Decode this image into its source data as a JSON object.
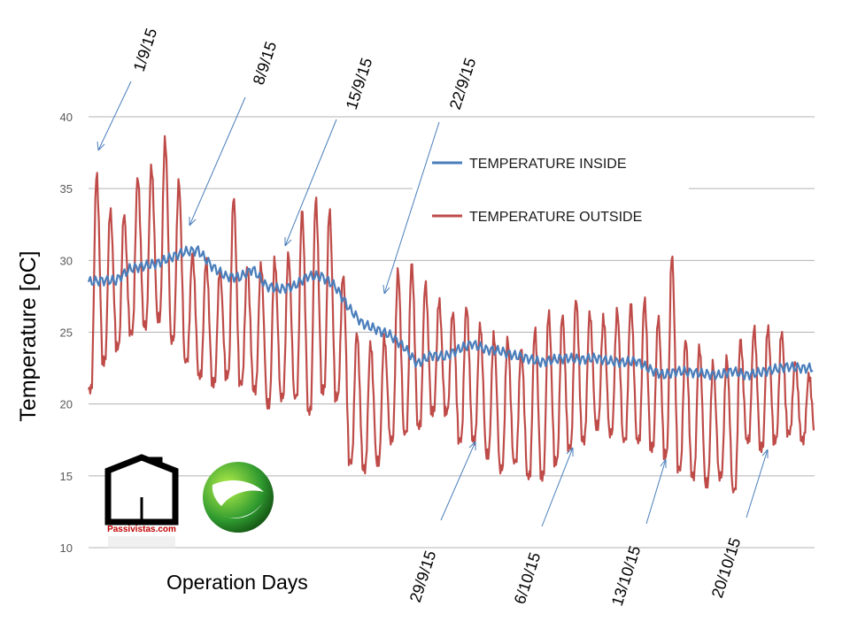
{
  "chart_data": {
    "type": "line",
    "title": "",
    "xlabel": "Operation Days",
    "ylabel": "Temperature [oC]",
    "ylim": [
      10,
      40
    ],
    "yticks": [
      10,
      15,
      20,
      25,
      30,
      35,
      40
    ],
    "xlim": [
      "2015-09-01",
      "2015-10-24"
    ],
    "grid": true,
    "legend_position": "upper-right",
    "series": [
      {
        "name": "TEMPERATURE INSIDE",
        "color": "#4a7ebb",
        "x": [
          "2015-09-01",
          "2015-09-02",
          "2015-09-03",
          "2015-09-04",
          "2015-09-05",
          "2015-09-06",
          "2015-09-07",
          "2015-09-08",
          "2015-09-09",
          "2015-09-10",
          "2015-09-11",
          "2015-09-12",
          "2015-09-13",
          "2015-09-14",
          "2015-09-15",
          "2015-09-16",
          "2015-09-17",
          "2015-09-18",
          "2015-09-19",
          "2015-09-20",
          "2015-09-21",
          "2015-09-22",
          "2015-09-23",
          "2015-09-24",
          "2015-09-25",
          "2015-09-26",
          "2015-09-27",
          "2015-09-28",
          "2015-09-29",
          "2015-09-30",
          "2015-10-01",
          "2015-10-02",
          "2015-10-03",
          "2015-10-04",
          "2015-10-05",
          "2015-10-06",
          "2015-10-07",
          "2015-10-08",
          "2015-10-09",
          "2015-10-10",
          "2015-10-11",
          "2015-10-12",
          "2015-10-13",
          "2015-10-14",
          "2015-10-15",
          "2015-10-16",
          "2015-10-17",
          "2015-10-18",
          "2015-10-19",
          "2015-10-20",
          "2015-10-21",
          "2015-10-22",
          "2015-10-23"
        ],
        "values": [
          28.5,
          28.6,
          28.6,
          29.4,
          29.6,
          29.8,
          30.2,
          30.6,
          30.7,
          29.6,
          28.9,
          28.8,
          29.4,
          28.2,
          28.0,
          28.2,
          28.9,
          28.9,
          28.2,
          26.7,
          25.6,
          25.2,
          24.8,
          24.0,
          22.8,
          23.4,
          23.3,
          23.8,
          24.2,
          23.8,
          23.7,
          23.4,
          23.2,
          22.9,
          23.1,
          23.2,
          23.1,
          23.2,
          23.0,
          22.9,
          23.0,
          22.4,
          22.0,
          22.3,
          22.2,
          22.1,
          22.0,
          22.3,
          22.0,
          22.2,
          22.4,
          22.6,
          22.5
        ]
      },
      {
        "name": "TEMPERATURE OUTSIDE",
        "color": "#be4b48",
        "x": [
          "2015-09-01",
          "2015-09-02",
          "2015-09-03",
          "2015-09-04",
          "2015-09-05",
          "2015-09-06",
          "2015-09-07",
          "2015-09-08",
          "2015-09-09",
          "2015-09-10",
          "2015-09-11",
          "2015-09-12",
          "2015-09-13",
          "2015-09-14",
          "2015-09-15",
          "2015-09-16",
          "2015-09-17",
          "2015-09-18",
          "2015-09-19",
          "2015-09-20",
          "2015-09-21",
          "2015-09-22",
          "2015-09-23",
          "2015-09-24",
          "2015-09-25",
          "2015-09-26",
          "2015-09-27",
          "2015-09-28",
          "2015-09-29",
          "2015-09-30",
          "2015-10-01",
          "2015-10-02",
          "2015-10-03",
          "2015-10-04",
          "2015-10-05",
          "2015-10-06",
          "2015-10-07",
          "2015-10-08",
          "2015-10-09",
          "2015-10-10",
          "2015-10-11",
          "2015-10-12",
          "2015-10-13",
          "2015-10-14",
          "2015-10-15",
          "2015-10-16",
          "2015-10-17",
          "2015-10-18",
          "2015-10-19",
          "2015-10-20",
          "2015-10-21",
          "2015-10-22",
          "2015-10-23"
        ],
        "daily_max": [
          36.0,
          33.5,
          33.2,
          35.8,
          36.5,
          38.4,
          35.5,
          30.5,
          30.0,
          29.3,
          34.4,
          29.6,
          29.7,
          30.0,
          30.4,
          33.5,
          34.3,
          33.5,
          29.0,
          25.0,
          24.2,
          24.6,
          29.3,
          29.8,
          28.4,
          27.2,
          26.4,
          26.8,
          25.5,
          24.8,
          24.5,
          23.8,
          25.2,
          26.4,
          26.2,
          27.3,
          26.3,
          26.0,
          26.5,
          27.0,
          27.3,
          26.0,
          30.4,
          24.5,
          24.0,
          22.8,
          23.2,
          24.5,
          25.3,
          25.3,
          25.0,
          23.0,
          22.0
        ],
        "daily_min": [
          21.0,
          23.0,
          24.0,
          25.0,
          25.5,
          26.0,
          24.5,
          23.0,
          22.0,
          21.5,
          22.0,
          21.5,
          21.0,
          20.0,
          20.5,
          20.5,
          19.5,
          21.0,
          20.5,
          16.0,
          15.5,
          16.0,
          17.5,
          18.0,
          18.5,
          19.5,
          19.5,
          17.5,
          17.5,
          16.5,
          15.5,
          16.0,
          15.0,
          15.0,
          16.0,
          17.0,
          17.5,
          18.5,
          18.0,
          17.5,
          17.5,
          17.0,
          16.5,
          15.5,
          15.0,
          14.5,
          15.0,
          14.0,
          17.5,
          17.0,
          17.5,
          18.0,
          17.5
        ]
      }
    ],
    "date_annotations": [
      "1/9/15",
      "8/9/15",
      "15/9/15",
      "22/9/15",
      "29/9/15",
      "6/10/15",
      "13/10/15",
      "20/10/15"
    ]
  },
  "logos": {
    "passivistas_text": "Passivistas.com"
  }
}
